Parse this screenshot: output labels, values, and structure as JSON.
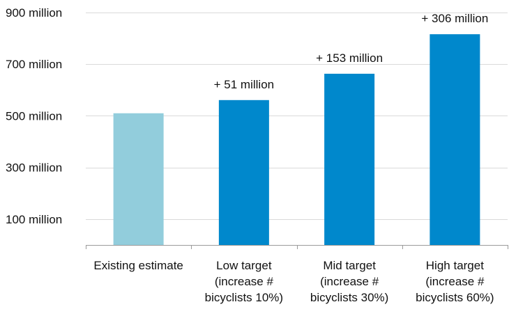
{
  "chart_data": {
    "type": "bar",
    "title": "",
    "xlabel": "",
    "ylabel": "",
    "ylim": [
      0,
      900000000
    ],
    "y_ticks": [
      {
        "value": 100000000,
        "label": "100 million"
      },
      {
        "value": 300000000,
        "label": "300 million"
      },
      {
        "value": 500000000,
        "label": "500 million"
      },
      {
        "value": 700000000,
        "label": "700 million"
      },
      {
        "value": 900000000,
        "label": "900 million"
      }
    ],
    "gridlines": [
      100000000,
      300000000,
      500000000,
      700000000,
      900000000
    ],
    "grid": true,
    "legend": "none",
    "categories": [
      {
        "lines": [
          "Existing estimate"
        ]
      },
      {
        "lines": [
          "Low target",
          "(increase #",
          "bicyclists 10%)"
        ]
      },
      {
        "lines": [
          "Mid target",
          "(increase #",
          "bicyclists 30%)"
        ]
      },
      {
        "lines": [
          "High target",
          "(increase #",
          "bicyclists 60%)"
        ]
      }
    ],
    "values": [
      510000000,
      561000000,
      663000000,
      816000000
    ],
    "data_labels": [
      "",
      "+ 51 million",
      "+ 153 million",
      "+ 306 million"
    ],
    "colors": [
      "#92cddc",
      "#0088cc",
      "#0088cc",
      "#0088cc"
    ]
  }
}
